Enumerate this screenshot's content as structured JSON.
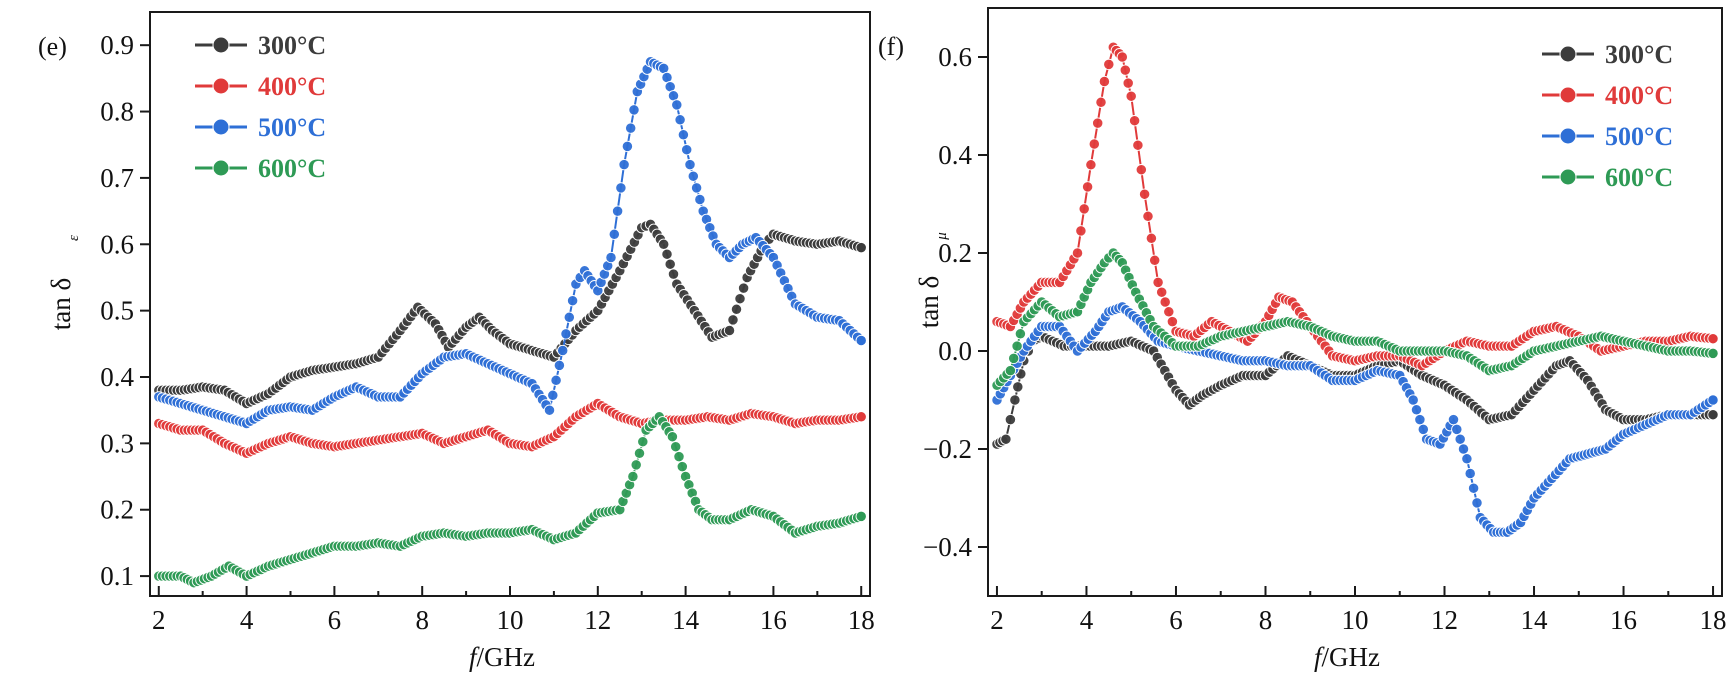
{
  "chart_data": [
    {
      "type": "line",
      "panel_label": "(e)",
      "xlabel_main": "f",
      "xlabel_rest": "/GHz",
      "ylabel_main": "tan δ",
      "ylabel_sub": "ε",
      "xlim": [
        1.8,
        18.2
      ],
      "ylim": [
        0.07,
        0.95
      ],
      "xticks": [
        "2",
        "4",
        "6",
        "8",
        "10",
        "12",
        "14",
        "16",
        "18"
      ],
      "yticks": [
        "0.1",
        "0.2",
        "0.3",
        "0.4",
        "0.5",
        "0.6",
        "0.7",
        "0.8",
        "0.9"
      ],
      "legend_position": "top-left",
      "marker": "circle",
      "series": [
        {
          "name": "300°C",
          "color": "#3c3c3c",
          "x": [
            2,
            2.5,
            3,
            3.5,
            4,
            4.5,
            5,
            5.5,
            6,
            6.5,
            7,
            7.5,
            7.9,
            8.3,
            8.6,
            9,
            9.3,
            9.6,
            10,
            10.5,
            11,
            11.5,
            12,
            12.5,
            13,
            13.2,
            13.5,
            13.8,
            14.2,
            14.6,
            15,
            15.4,
            15.8,
            16,
            16.5,
            17,
            17.5,
            18
          ],
          "y": [
            0.38,
            0.38,
            0.385,
            0.38,
            0.36,
            0.375,
            0.4,
            0.41,
            0.415,
            0.42,
            0.43,
            0.47,
            0.505,
            0.48,
            0.445,
            0.475,
            0.49,
            0.47,
            0.45,
            0.44,
            0.43,
            0.47,
            0.5,
            0.56,
            0.625,
            0.63,
            0.6,
            0.54,
            0.5,
            0.46,
            0.47,
            0.55,
            0.6,
            0.615,
            0.605,
            0.6,
            0.605,
            0.595
          ]
        },
        {
          "name": "400°C",
          "color": "#e03a3a",
          "x": [
            2,
            2.5,
            3,
            3.5,
            4,
            4.5,
            5,
            5.5,
            6,
            6.5,
            7,
            7.5,
            8,
            8.5,
            9,
            9.5,
            10,
            10.5,
            11,
            11.5,
            12,
            12.5,
            13,
            13.5,
            14,
            14.5,
            15,
            15.5,
            16,
            16.5,
            17,
            17.5,
            18
          ],
          "y": [
            0.33,
            0.32,
            0.32,
            0.3,
            0.285,
            0.3,
            0.31,
            0.3,
            0.295,
            0.3,
            0.305,
            0.31,
            0.315,
            0.3,
            0.31,
            0.32,
            0.3,
            0.295,
            0.31,
            0.34,
            0.36,
            0.34,
            0.33,
            0.335,
            0.335,
            0.34,
            0.335,
            0.345,
            0.34,
            0.33,
            0.335,
            0.335,
            0.34
          ]
        },
        {
          "name": "500°C",
          "color": "#2e6fd6",
          "x": [
            2,
            2.5,
            3,
            3.5,
            4,
            4.5,
            5,
            5.5,
            6,
            6.5,
            7,
            7.5,
            8,
            8.5,
            9,
            9.5,
            10,
            10.5,
            10.9,
            11.2,
            11.5,
            11.7,
            12,
            12.3,
            12.6,
            12.9,
            13.2,
            13.5,
            13.8,
            14.1,
            14.4,
            14.7,
            15,
            15.3,
            15.6,
            16,
            16.5,
            17,
            17.5,
            18
          ],
          "y": [
            0.37,
            0.36,
            0.35,
            0.34,
            0.33,
            0.35,
            0.355,
            0.35,
            0.37,
            0.385,
            0.37,
            0.37,
            0.405,
            0.43,
            0.435,
            0.42,
            0.405,
            0.39,
            0.35,
            0.44,
            0.54,
            0.56,
            0.53,
            0.58,
            0.72,
            0.83,
            0.875,
            0.865,
            0.81,
            0.72,
            0.65,
            0.6,
            0.58,
            0.6,
            0.61,
            0.58,
            0.51,
            0.49,
            0.485,
            0.455
          ]
        },
        {
          "name": "600°C",
          "color": "#2e9a55",
          "x": [
            2,
            2.5,
            2.8,
            3.2,
            3.6,
            4,
            4.5,
            5,
            5.5,
            6,
            6.5,
            7,
            7.5,
            8,
            8.5,
            9,
            9.5,
            10,
            10.5,
            11,
            11.5,
            12,
            12.5,
            12.8,
            13.1,
            13.4,
            13.7,
            14,
            14.3,
            14.6,
            15,
            15.5,
            16,
            16.5,
            17,
            17.5,
            18
          ],
          "y": [
            0.1,
            0.1,
            0.09,
            0.1,
            0.115,
            0.1,
            0.115,
            0.125,
            0.135,
            0.145,
            0.145,
            0.15,
            0.145,
            0.16,
            0.165,
            0.16,
            0.165,
            0.165,
            0.17,
            0.155,
            0.165,
            0.195,
            0.2,
            0.25,
            0.32,
            0.34,
            0.31,
            0.25,
            0.2,
            0.185,
            0.185,
            0.2,
            0.19,
            0.165,
            0.175,
            0.18,
            0.19
          ]
        }
      ]
    },
    {
      "type": "line",
      "panel_label": "(f)",
      "xlabel_main": "f",
      "xlabel_rest": "/GHz",
      "ylabel_main": "tan δ",
      "ylabel_sub": "μ",
      "xlim": [
        1.8,
        18.2
      ],
      "ylim": [
        -0.5,
        0.7
      ],
      "xticks": [
        "2",
        "4",
        "6",
        "8",
        "10",
        "12",
        "14",
        "16",
        "18"
      ],
      "yticks": [
        "−0.4",
        "−0.2",
        "0.0",
        "0.2",
        "0.4",
        "0.6"
      ],
      "legend_position": "top-right",
      "marker": "circle",
      "series": [
        {
          "name": "300°C",
          "color": "#3c3c3c",
          "x": [
            2,
            2.2,
            2.4,
            2.6,
            2.8,
            3,
            3.5,
            4,
            4.5,
            5,
            5.5,
            6,
            6.3,
            6.6,
            7,
            7.5,
            8,
            8.5,
            9,
            9.5,
            10,
            10.5,
            11,
            11.5,
            12,
            12.5,
            13,
            13.5,
            14,
            14.5,
            14.8,
            15.2,
            15.6,
            16,
            16.5,
            17,
            17.5,
            18
          ],
          "y": [
            -0.19,
            -0.18,
            -0.1,
            -0.02,
            0.02,
            0.03,
            0.01,
            0.01,
            0.01,
            0.02,
            0,
            -0.08,
            -0.11,
            -0.09,
            -0.07,
            -0.05,
            -0.05,
            -0.01,
            -0.03,
            -0.05,
            -0.05,
            -0.03,
            -0.02,
            -0.05,
            -0.07,
            -0.1,
            -0.14,
            -0.13,
            -0.08,
            -0.03,
            -0.02,
            -0.06,
            -0.12,
            -0.14,
            -0.14,
            -0.13,
            -0.13,
            -0.13
          ]
        },
        {
          "name": "400°C",
          "color": "#e03a3a",
          "x": [
            2,
            2.3,
            2.6,
            3,
            3.4,
            3.8,
            4.1,
            4.4,
            4.6,
            4.8,
            5,
            5.3,
            5.6,
            6,
            6.4,
            6.8,
            7.2,
            7.6,
            8,
            8.3,
            8.6,
            9,
            9.5,
            10,
            10.5,
            11,
            11.5,
            12,
            12.5,
            13,
            13.5,
            14,
            14.5,
            15,
            15.5,
            16,
            16.5,
            17,
            17.5,
            18
          ],
          "y": [
            0.06,
            0.05,
            0.1,
            0.14,
            0.14,
            0.2,
            0.38,
            0.55,
            0.62,
            0.6,
            0.52,
            0.32,
            0.14,
            0.04,
            0.03,
            0.06,
            0.04,
            0.02,
            0.06,
            0.11,
            0.1,
            0.05,
            -0.01,
            -0.02,
            -0.01,
            -0.01,
            -0.03,
            0,
            0.02,
            0.01,
            0.01,
            0.04,
            0.05,
            0.03,
            0,
            0.01,
            0.02,
            0.02,
            0.03,
            0.025
          ]
        },
        {
          "name": "500°C",
          "color": "#2e6fd6",
          "x": [
            2,
            2.3,
            2.6,
            3,
            3.4,
            3.8,
            4.2,
            4.5,
            4.8,
            5.2,
            5.6,
            6,
            6.5,
            7,
            7.5,
            8,
            8.5,
            9,
            9.5,
            10,
            10.5,
            11,
            11.3,
            11.6,
            11.9,
            12.2,
            12.5,
            12.8,
            13.1,
            13.4,
            13.7,
            14,
            14.4,
            14.8,
            15.2,
            15.6,
            16,
            16.5,
            17,
            17.5,
            18
          ],
          "y": [
            -0.1,
            -0.05,
            0,
            0.05,
            0.05,
            0,
            0.04,
            0.08,
            0.09,
            0.06,
            0.02,
            0.01,
            0,
            -0.01,
            -0.02,
            -0.02,
            -0.03,
            -0.03,
            -0.06,
            -0.06,
            -0.04,
            -0.05,
            -0.1,
            -0.18,
            -0.19,
            -0.14,
            -0.22,
            -0.34,
            -0.37,
            -0.37,
            -0.35,
            -0.3,
            -0.26,
            -0.22,
            -0.21,
            -0.2,
            -0.17,
            -0.15,
            -0.13,
            -0.13,
            -0.1
          ]
        },
        {
          "name": "600°C",
          "color": "#2e9a55",
          "x": [
            2,
            2.3,
            2.6,
            3,
            3.4,
            3.8,
            4.1,
            4.4,
            4.6,
            4.8,
            5.1,
            5.5,
            6,
            6.5,
            7,
            7.5,
            8,
            8.5,
            9,
            9.5,
            10,
            10.5,
            11,
            11.5,
            12,
            12.5,
            13,
            13.5,
            14,
            14.5,
            15,
            15.5,
            16,
            16.5,
            17,
            17.5,
            18
          ],
          "y": [
            -0.07,
            -0.04,
            0.06,
            0.1,
            0.07,
            0.08,
            0.14,
            0.18,
            0.2,
            0.18,
            0.12,
            0.05,
            0.01,
            0.01,
            0.03,
            0.04,
            0.05,
            0.06,
            0.05,
            0.03,
            0.02,
            0.02,
            0,
            0,
            0,
            -0.01,
            -0.04,
            -0.03,
            0,
            0.01,
            0.02,
            0.03,
            0.02,
            0.01,
            0,
            0,
            -0.005
          ]
        }
      ]
    }
  ]
}
